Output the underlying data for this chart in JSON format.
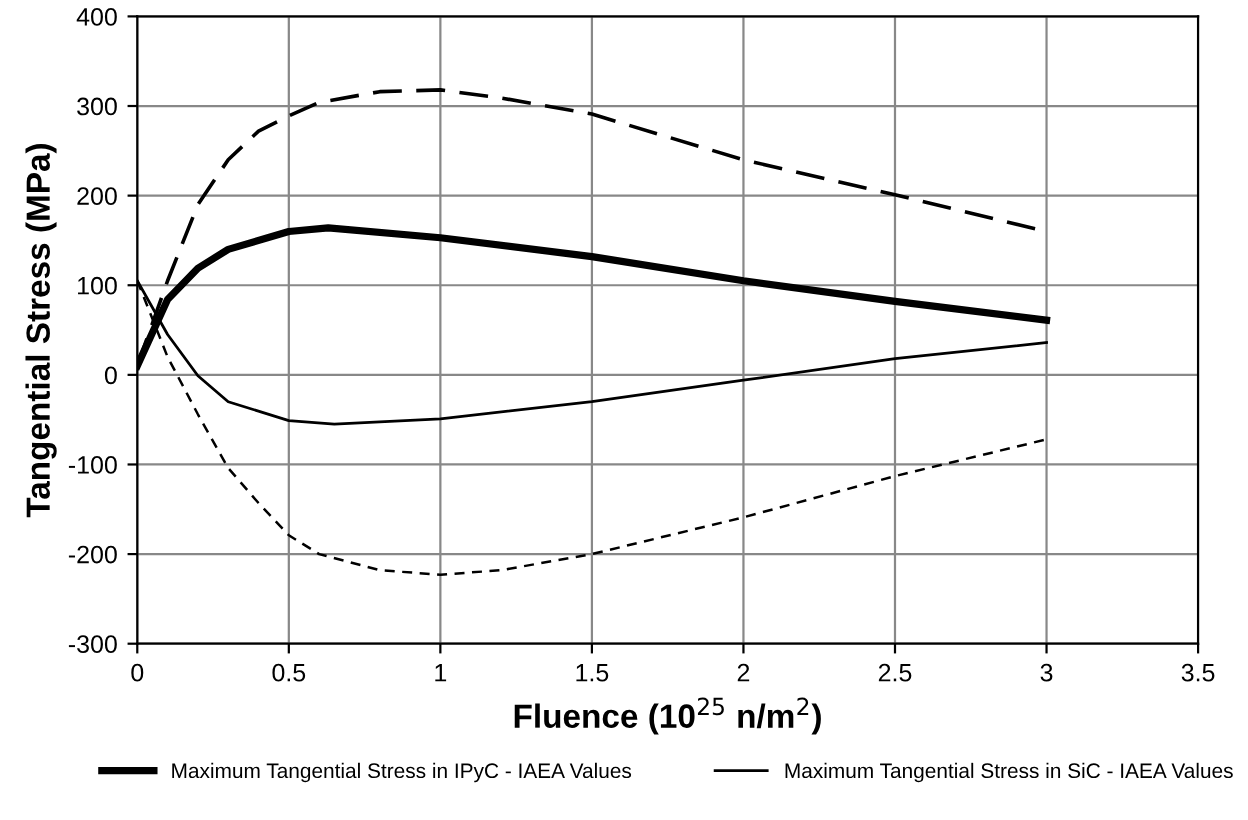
{
  "chart_data": {
    "type": "line",
    "xlabel": "Fluence (10$^{25}$ n/m$^{2}$)",
    "ylabel": "Tangential Stress (MPa)",
    "xlim": [
      0,
      3.5
    ],
    "xticks": [
      0,
      0.5,
      1,
      1.5,
      2,
      2.5,
      3,
      3.5
    ],
    "ylim": [
      -300,
      400
    ],
    "yticks": [
      -300,
      -200,
      -100,
      0,
      100,
      200,
      300,
      400
    ],
    "grid": true,
    "legend": "bottom",
    "marker": "none",
    "series": [
      {
        "name": "Maximum Tangential Stress in IPyC - IAEA Values",
        "color": "#000000",
        "line_style": "solid",
        "x": [
          0,
          0.1,
          0.2,
          0.3,
          0.5,
          0.63,
          1,
          1.5,
          2,
          2.5,
          3
        ],
        "values": [
          10,
          84,
          119,
          140,
          160,
          164,
          153,
          132,
          105,
          82,
          61
        ]
      },
      {
        "name": "Maximum Tangential Stress in SiC - IAEA Values",
        "color": "#000000",
        "line_style": "solid",
        "x": [
          0,
          0.1,
          0.2,
          0.3,
          0.5,
          0.65,
          1,
          1.5,
          2,
          2.5,
          3
        ],
        "values": [
          105,
          45,
          -1,
          -30,
          -51,
          -55,
          -49,
          -30,
          -6,
          18,
          36
        ]
      },
      {
        "color": "#000000",
        "line_style": "dashed",
        "x": [
          0,
          0.1,
          0.2,
          0.3,
          0.4,
          0.5,
          0.6,
          0.8,
          1,
          1.2,
          1.5,
          2,
          2.5,
          3
        ],
        "values": [
          10,
          105,
          190,
          240,
          272,
          289,
          304,
          316,
          318,
          309,
          291,
          240,
          201,
          160
        ]
      },
      {
        "color": "#000000",
        "line_style": "dotted",
        "x": [
          0,
          0.1,
          0.2,
          0.3,
          0.4,
          0.5,
          0.6,
          0.8,
          1,
          1.2,
          1.5,
          2,
          2.5,
          3
        ],
        "values": [
          105,
          20,
          -44,
          -104,
          -143,
          -179,
          -200,
          -218,
          -223,
          -218,
          -200,
          -159,
          -113,
          -72
        ]
      }
    ]
  }
}
